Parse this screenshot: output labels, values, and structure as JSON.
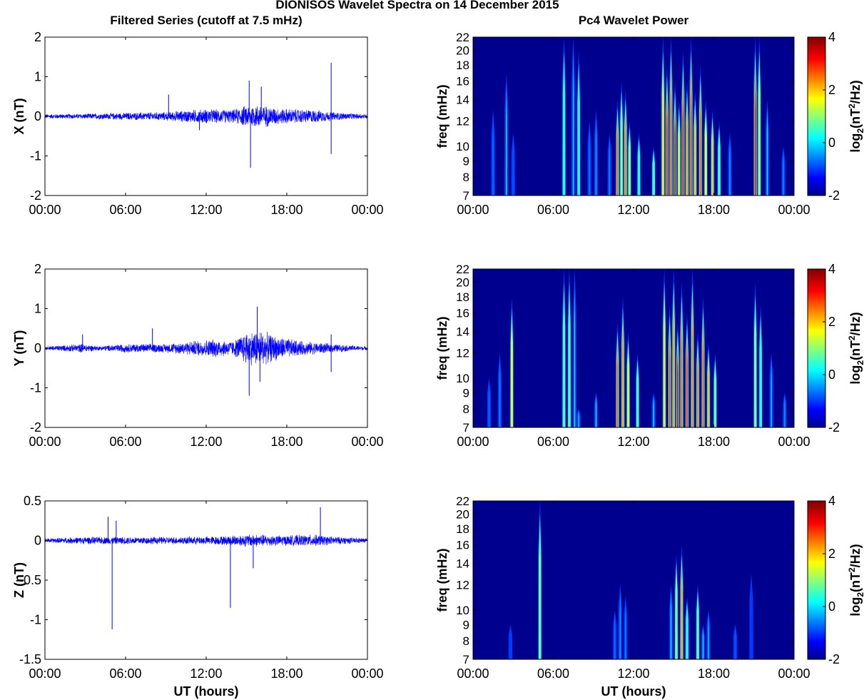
{
  "figure": {
    "title": "DIONISOS Wavelet Spectra on 14 December 2015",
    "left_title": "Filtered Series (cutoff at 7.5 mHz)",
    "right_title": "Pc4 Wavelet Power",
    "xlabel": "UT (hours)",
    "freq_label": "freq (mHz)",
    "colorbar_label_pre": "log",
    "colorbar_label_sub": "2",
    "colorbar_label_mid": "(nT",
    "colorbar_label_sup": "2",
    "colorbar_label_post": "/Hz)"
  },
  "colors": {
    "trace": "#0000ff",
    "background": "#00008f",
    "colormap": [
      "#00008f",
      "#0000ff",
      "#00ffff",
      "#ffff00",
      "#ff0000",
      "#800000"
    ]
  },
  "chart_data": [
    {
      "id": "x-series",
      "type": "line",
      "ylabel": "X (nT)",
      "xlim": [
        0,
        24
      ],
      "ylim": [
        -2,
        2
      ],
      "x_ticks": [
        "00:00",
        "06:00",
        "12:00",
        "18:00",
        "00:00"
      ],
      "y_ticks": [
        "2",
        "1",
        "0",
        "-1",
        "-2"
      ],
      "noise_envelope": [
        {
          "x": 0,
          "amp": 0.06
        },
        {
          "x": 2.5,
          "amp": 0.07
        },
        {
          "x": 6,
          "amp": 0.1
        },
        {
          "x": 9,
          "amp": 0.12
        },
        {
          "x": 11,
          "amp": 0.18
        },
        {
          "x": 12,
          "amp": 0.2
        },
        {
          "x": 14,
          "amp": 0.18
        },
        {
          "x": 15,
          "amp": 0.3
        },
        {
          "x": 16,
          "amp": 0.32
        },
        {
          "x": 17.5,
          "amp": 0.22
        },
        {
          "x": 20,
          "amp": 0.18
        },
        {
          "x": 22,
          "amp": 0.1
        },
        {
          "x": 24,
          "amp": 0.06
        }
      ],
      "spikes": [
        {
          "x": 9.2,
          "y": 0.55
        },
        {
          "x": 11.5,
          "y": -0.35
        },
        {
          "x": 15.2,
          "y": 0.9
        },
        {
          "x": 15.3,
          "y": -1.3
        },
        {
          "x": 16.1,
          "y": 0.75
        },
        {
          "x": 21.3,
          "y": 1.35
        },
        {
          "x": 21.3,
          "y": -0.95
        }
      ]
    },
    {
      "id": "y-series",
      "type": "line",
      "ylabel": "Y (nT)",
      "xlim": [
        0,
        24
      ],
      "ylim": [
        -2,
        2
      ],
      "x_ticks": [
        "00:00",
        "06:00",
        "12:00",
        "18:00",
        "00:00"
      ],
      "y_ticks": [
        "2",
        "1",
        "0",
        "-1",
        "-2"
      ],
      "noise_envelope": [
        {
          "x": 0,
          "amp": 0.05
        },
        {
          "x": 2.8,
          "amp": 0.12
        },
        {
          "x": 4,
          "amp": 0.06
        },
        {
          "x": 6,
          "amp": 0.12
        },
        {
          "x": 9,
          "amp": 0.12
        },
        {
          "x": 11,
          "amp": 0.2
        },
        {
          "x": 12.5,
          "amp": 0.25
        },
        {
          "x": 14,
          "amp": 0.2
        },
        {
          "x": 15,
          "amp": 0.45
        },
        {
          "x": 16,
          "amp": 0.5
        },
        {
          "x": 17,
          "amp": 0.35
        },
        {
          "x": 19,
          "amp": 0.2
        },
        {
          "x": 22,
          "amp": 0.1
        },
        {
          "x": 24,
          "amp": 0.05
        }
      ],
      "spikes": [
        {
          "x": 2.8,
          "y": 0.35
        },
        {
          "x": 8,
          "y": 0.5
        },
        {
          "x": 15.2,
          "y": -1.2
        },
        {
          "x": 15.8,
          "y": 1.05
        },
        {
          "x": 16,
          "y": -0.85
        },
        {
          "x": 21.3,
          "y": 0.35
        },
        {
          "x": 21.3,
          "y": -0.6
        },
        {
          "x": 24,
          "y": 0.55
        }
      ]
    },
    {
      "id": "z-series",
      "type": "line",
      "ylabel": "Z (nT)",
      "xlim": [
        0,
        24
      ],
      "ylim": [
        -1.5,
        0.5
      ],
      "x_ticks": [
        "00:00",
        "06:00",
        "12:00",
        "18:00",
        "00:00"
      ],
      "y_ticks": [
        "0.5",
        "0",
        "-0.5",
        "-1",
        "-1.5"
      ],
      "noise_envelope": [
        {
          "x": 0,
          "amp": 0.03
        },
        {
          "x": 3,
          "amp": 0.05
        },
        {
          "x": 6,
          "amp": 0.05
        },
        {
          "x": 10,
          "amp": 0.05
        },
        {
          "x": 13,
          "amp": 0.06
        },
        {
          "x": 15.5,
          "amp": 0.09
        },
        {
          "x": 17.5,
          "amp": 0.07
        },
        {
          "x": 20,
          "amp": 0.08
        },
        {
          "x": 22,
          "amp": 0.05
        },
        {
          "x": 24,
          "amp": 0.03
        }
      ],
      "spikes": [
        {
          "x": 4.7,
          "y": 0.3
        },
        {
          "x": 5.0,
          "y": -1.12
        },
        {
          "x": 5.3,
          "y": 0.25
        },
        {
          "x": 13.8,
          "y": -0.85
        },
        {
          "x": 15.5,
          "y": -0.35
        },
        {
          "x": 20.5,
          "y": 0.42
        }
      ]
    },
    {
      "id": "x-power",
      "type": "heatmap",
      "ylabel": "freq (mHz)",
      "xlim": [
        0,
        24
      ],
      "ylim": [
        7,
        22
      ],
      "y_scale": "log",
      "clim": [
        -2,
        4
      ],
      "x_ticks": [
        "00:00",
        "06:00",
        "12:00",
        "18:00",
        "00:00"
      ],
      "y_ticks": [
        "22",
        "20",
        "18",
        "16",
        "14",
        "12",
        "10",
        "9",
        "8",
        "7"
      ],
      "colorbar_ticks": [
        "4",
        "2",
        "0",
        "-2"
      ],
      "streaks": [
        {
          "t": 1.5,
          "fhi": 13,
          "p": -0.6
        },
        {
          "t": 2.5,
          "fhi": 17,
          "p": 0.2
        },
        {
          "t": 3.0,
          "fhi": 11,
          "p": -0.8
        },
        {
          "t": 6.8,
          "fhi": 22,
          "p": 0.4
        },
        {
          "t": 7.5,
          "fhi": 22,
          "p": 0.0
        },
        {
          "t": 7.9,
          "fhi": 20,
          "p": 0.3
        },
        {
          "t": 8.7,
          "fhi": 12,
          "p": -0.5
        },
        {
          "t": 9.2,
          "fhi": 13,
          "p": -0.2
        },
        {
          "t": 10.2,
          "fhi": 11,
          "p": -0.4
        },
        {
          "t": 10.8,
          "fhi": 14,
          "p": 2.6
        },
        {
          "t": 11.1,
          "fhi": 16,
          "p": 1.2
        },
        {
          "t": 11.4,
          "fhi": 15,
          "p": 2.4
        },
        {
          "t": 11.7,
          "fhi": 12,
          "p": 1.4
        },
        {
          "t": 12.4,
          "fhi": 11,
          "p": 0.4
        },
        {
          "t": 13.5,
          "fhi": 10,
          "p": 0.6
        },
        {
          "t": 14.2,
          "fhi": 22,
          "p": 1.8
        },
        {
          "t": 14.5,
          "fhi": 18,
          "p": 3.2
        },
        {
          "t": 14.8,
          "fhi": 22,
          "p": 2.8
        },
        {
          "t": 15.1,
          "fhi": 16,
          "p": 3.8
        },
        {
          "t": 15.4,
          "fhi": 14,
          "p": 1.8
        },
        {
          "t": 15.7,
          "fhi": 20,
          "p": 3.4
        },
        {
          "t": 16.0,
          "fhi": 16,
          "p": 2.2
        },
        {
          "t": 16.3,
          "fhi": 22,
          "p": 3.0
        },
        {
          "t": 16.6,
          "fhi": 15,
          "p": 2.0
        },
        {
          "t": 17.0,
          "fhi": 18,
          "p": 2.6
        },
        {
          "t": 17.4,
          "fhi": 14,
          "p": 1.6
        },
        {
          "t": 17.9,
          "fhi": 13,
          "p": 2.0
        },
        {
          "t": 18.4,
          "fhi": 12,
          "p": 0.6
        },
        {
          "t": 19.2,
          "fhi": 11,
          "p": -0.2
        },
        {
          "t": 21.1,
          "fhi": 22,
          "p": 3.4
        },
        {
          "t": 21.4,
          "fhi": 22,
          "p": 1.5
        },
        {
          "t": 22.0,
          "fhi": 14,
          "p": 0.2
        },
        {
          "t": 23.2,
          "fhi": 10,
          "p": -0.4
        }
      ]
    },
    {
      "id": "y-power",
      "type": "heatmap",
      "ylabel": "freq (mHz)",
      "xlim": [
        0,
        24
      ],
      "ylim": [
        7,
        22
      ],
      "y_scale": "log",
      "clim": [
        -2,
        4
      ],
      "x_ticks": [
        "00:00",
        "06:00",
        "12:00",
        "18:00",
        "00:00"
      ],
      "y_ticks": [
        "22",
        "20",
        "18",
        "16",
        "14",
        "12",
        "10",
        "9",
        "8",
        "7"
      ],
      "colorbar_ticks": [
        "4",
        "2",
        "0",
        "-2"
      ],
      "streaks": [
        {
          "t": 1.2,
          "fhi": 10,
          "p": -0.6
        },
        {
          "t": 2.0,
          "fhi": 12,
          "p": -0.4
        },
        {
          "t": 2.9,
          "fhi": 18,
          "p": 1.6
        },
        {
          "t": 6.8,
          "fhi": 22,
          "p": 0.6
        },
        {
          "t": 7.2,
          "fhi": 22,
          "p": 0.6
        },
        {
          "t": 7.6,
          "fhi": 22,
          "p": 0.2
        },
        {
          "t": 7.9,
          "fhi": 8,
          "p": 0.0
        },
        {
          "t": 9.2,
          "fhi": 9,
          "p": 0.2
        },
        {
          "t": 10.8,
          "fhi": 15,
          "p": 2.6
        },
        {
          "t": 11.2,
          "fhi": 18,
          "p": 2.2
        },
        {
          "t": 11.6,
          "fhi": 14,
          "p": 1.6
        },
        {
          "t": 12.3,
          "fhi": 12,
          "p": 0.6
        },
        {
          "t": 13.5,
          "fhi": 9,
          "p": 0.2
        },
        {
          "t": 14.3,
          "fhi": 22,
          "p": 1.8
        },
        {
          "t": 14.7,
          "fhi": 17,
          "p": 2.8
        },
        {
          "t": 15.0,
          "fhi": 22,
          "p": 2.2
        },
        {
          "t": 15.3,
          "fhi": 15,
          "p": 3.6
        },
        {
          "t": 15.6,
          "fhi": 20,
          "p": 2.6
        },
        {
          "t": 16.0,
          "fhi": 16,
          "p": 3.0
        },
        {
          "t": 16.4,
          "fhi": 22,
          "p": 2.4
        },
        {
          "t": 16.8,
          "fhi": 14,
          "p": 2.4
        },
        {
          "t": 17.2,
          "fhi": 18,
          "p": 2.8
        },
        {
          "t": 17.6,
          "fhi": 13,
          "p": 2.0
        },
        {
          "t": 18.1,
          "fhi": 12,
          "p": 1.0
        },
        {
          "t": 21.1,
          "fhi": 20,
          "p": 1.2
        },
        {
          "t": 21.5,
          "fhi": 17,
          "p": 0.4
        },
        {
          "t": 22.3,
          "fhi": 12,
          "p": 0.0
        },
        {
          "t": 23.3,
          "fhi": 9,
          "p": -0.3
        }
      ]
    },
    {
      "id": "z-power",
      "type": "heatmap",
      "ylabel": "freq (mHz)",
      "xlim": [
        0,
        24
      ],
      "ylim": [
        7,
        22
      ],
      "y_scale": "log",
      "clim": [
        -2,
        4
      ],
      "x_ticks": [
        "00:00",
        "06:00",
        "12:00",
        "18:00",
        "00:00"
      ],
      "y_ticks": [
        "22",
        "20",
        "18",
        "16",
        "14",
        "12",
        "10",
        "9",
        "8",
        "7"
      ],
      "colorbar_ticks": [
        "4",
        "2",
        "0",
        "-2"
      ],
      "streaks": [
        {
          "t": 2.8,
          "fhi": 9,
          "p": -1.0
        },
        {
          "t": 5.0,
          "fhi": 22,
          "p": 0.9
        },
        {
          "t": 10.6,
          "fhi": 10,
          "p": -0.6
        },
        {
          "t": 11.0,
          "fhi": 12,
          "p": -0.3
        },
        {
          "t": 11.4,
          "fhi": 11,
          "p": -0.5
        },
        {
          "t": 14.8,
          "fhi": 12,
          "p": 0.2
        },
        {
          "t": 15.2,
          "fhi": 15,
          "p": 1.2
        },
        {
          "t": 15.6,
          "fhi": 16,
          "p": 2.2
        },
        {
          "t": 16.0,
          "fhi": 11,
          "p": 0.4
        },
        {
          "t": 16.8,
          "fhi": 12,
          "p": 0.8
        },
        {
          "t": 17.2,
          "fhi": 9,
          "p": 0.2
        },
        {
          "t": 17.6,
          "fhi": 10,
          "p": 0.0
        },
        {
          "t": 19.6,
          "fhi": 9,
          "p": -0.8
        },
        {
          "t": 20.8,
          "fhi": 13,
          "p": -1.0
        }
      ]
    }
  ]
}
